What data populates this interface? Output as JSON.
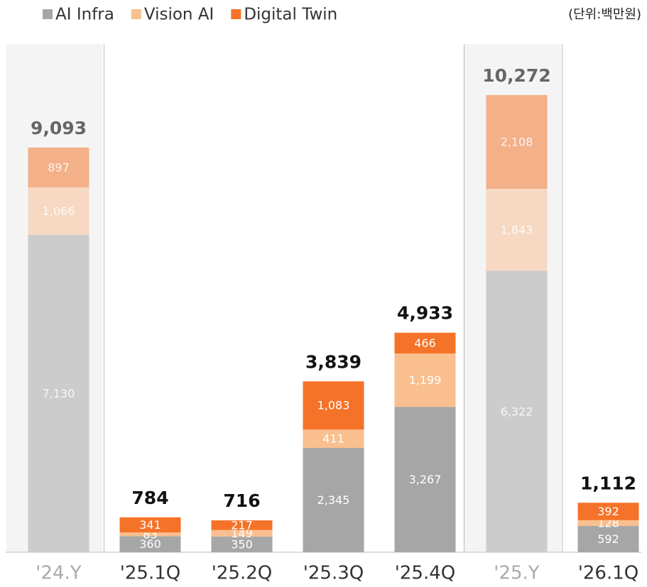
{
  "chart_data": {
    "type": "stacked_bar",
    "unit_note": "(단위:백만원)",
    "categories": [
      "'24.Y",
      "'25.1Q",
      "'25.2Q",
      "'25.3Q",
      "'25.4Q",
      "'25.Y",
      "'26.1Q"
    ],
    "faded": [
      true,
      false,
      false,
      false,
      false,
      true,
      false
    ],
    "series": [
      {
        "name": "AI Infra",
        "color": "#a6a6a6",
        "faded_color": "#cccccc",
        "values": [
          7130,
          360,
          350,
          2345,
          3267,
          6322,
          592
        ],
        "value_labels": [
          "7,130",
          "360",
          "350",
          "2,345",
          "3,267",
          "6,322",
          "592"
        ]
      },
      {
        "name": "Vision AI",
        "color": "#f9bf8f",
        "faded_color": "#f6d8c3",
        "values": [
          1066,
          83,
          149,
          411,
          1199,
          1843,
          128
        ],
        "value_labels": [
          "1,066",
          "83",
          "149",
          "411",
          "1,199",
          "1,843",
          "128"
        ]
      },
      {
        "name": "Digital Twin",
        "color": "#f47328",
        "faded_color": "#f3b089",
        "values": [
          897,
          341,
          217,
          1083,
          466,
          2108,
          392
        ],
        "value_labels": [
          "897",
          "341",
          "217",
          "1,083",
          "466",
          "2,108",
          "392"
        ]
      }
    ],
    "totals": [
      9093,
      784,
      716,
      3839,
      4933,
      10272,
      1112
    ],
    "total_labels": [
      "9,093",
      "784",
      "716",
      "3,839",
      "4,933",
      "10,272",
      "1,112"
    ],
    "ylim": [
      0,
      10000
    ]
  }
}
